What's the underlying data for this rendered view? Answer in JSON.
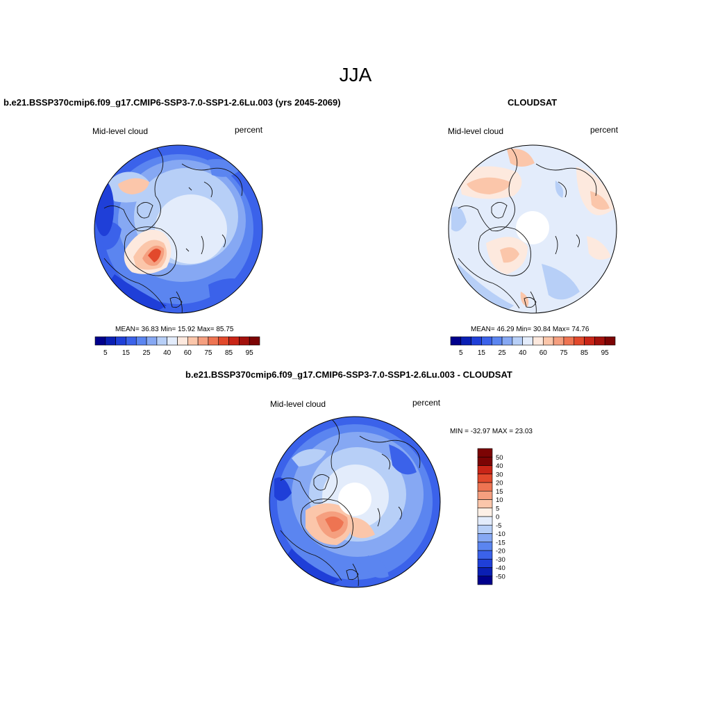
{
  "figure": {
    "title": "JJA",
    "colors": {
      "scale_abs": [
        "#00008c",
        "#0a1fb4",
        "#1f3fd8",
        "#3b62ea",
        "#5b85f0",
        "#86a8f3",
        "#b7cff7",
        "#e3ecfb",
        "#fde9de",
        "#fbc6aa",
        "#f59f7f",
        "#ee7452",
        "#e2492c",
        "#c92517",
        "#a3110c",
        "#7c0404"
      ],
      "scale_diff": [
        "#00008c",
        "#0a1fb4",
        "#1f3fd8",
        "#3b62ea",
        "#5b85f0",
        "#86a8f3",
        "#b7cff7",
        "#e3ecfb",
        "#fdf0e6",
        "#fbc6aa",
        "#f59f7f",
        "#ee7452",
        "#e2492c",
        "#c92517",
        "#7c0404"
      ]
    }
  },
  "panel_model": {
    "title": "b.e21.BSSP370cmip6.f09_g17.CMIP6-SSP3-7.0-SSP1-2.6Lu.003 (yrs 2045-2069)",
    "left_label": "Mid-level cloud",
    "right_label": "percent",
    "stats": "MEAN=  36.83  Min=  15.92  Max=  85.75",
    "colorbar_labels": [
      "5",
      "15",
      "25",
      "40",
      "60",
      "75",
      "85",
      "95"
    ]
  },
  "panel_obs": {
    "title": "CLOUDSAT",
    "left_label": "Mid-level cloud",
    "right_label": "percent",
    "stats": "MEAN=  46.29  Min=  30.84  Max=  74.76",
    "colorbar_labels": [
      "5",
      "15",
      "25",
      "40",
      "60",
      "75",
      "85",
      "95"
    ]
  },
  "panel_diff": {
    "title": "b.e21.BSSP370cmip6.f09_g17.CMIP6-SSP3-7.0-SSP1-2.6Lu.003 - CLOUDSAT",
    "left_label": "Mid-level cloud",
    "right_label": "percent",
    "stats": "MIN = -32.97 MAX =  23.03",
    "colorbar_labels": [
      "50",
      "40",
      "30",
      "20",
      "15",
      "10",
      "5",
      "0",
      "-5",
      "-10",
      "-15",
      "-20",
      "-30",
      "-40",
      "-50"
    ]
  }
}
